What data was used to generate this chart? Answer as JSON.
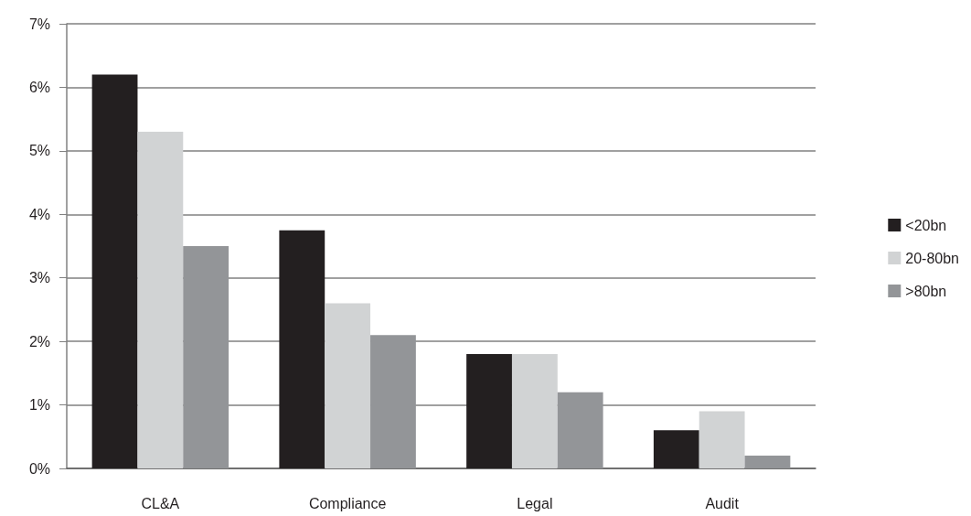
{
  "chart_data": {
    "type": "bar",
    "categories": [
      "CL&A",
      "Compliance",
      "Legal",
      "Audit"
    ],
    "series": [
      {
        "name": "<20bn",
        "color": "#231f20",
        "values": [
          6.2,
          3.75,
          1.8,
          0.6
        ]
      },
      {
        "name": "20-80bn",
        "color": "#d1d3d4",
        "values": [
          5.3,
          2.6,
          1.8,
          0.9
        ]
      },
      {
        "name": ">80bn",
        "color": "#939598",
        "values": [
          3.5,
          2.1,
          1.2,
          0.2
        ]
      }
    ],
    "ylim": [
      0,
      7
    ],
    "yticks": [
      {
        "value": 0,
        "label": "0%"
      },
      {
        "value": 1,
        "label": "1%"
      },
      {
        "value": 2,
        "label": "2%"
      },
      {
        "value": 3,
        "label": "3%"
      },
      {
        "value": 4,
        "label": "4%"
      },
      {
        "value": 5,
        "label": "5%"
      },
      {
        "value": 6,
        "label": "6%"
      },
      {
        "value": 7,
        "label": "7%"
      }
    ],
    "grid": "y",
    "legend": "right"
  }
}
